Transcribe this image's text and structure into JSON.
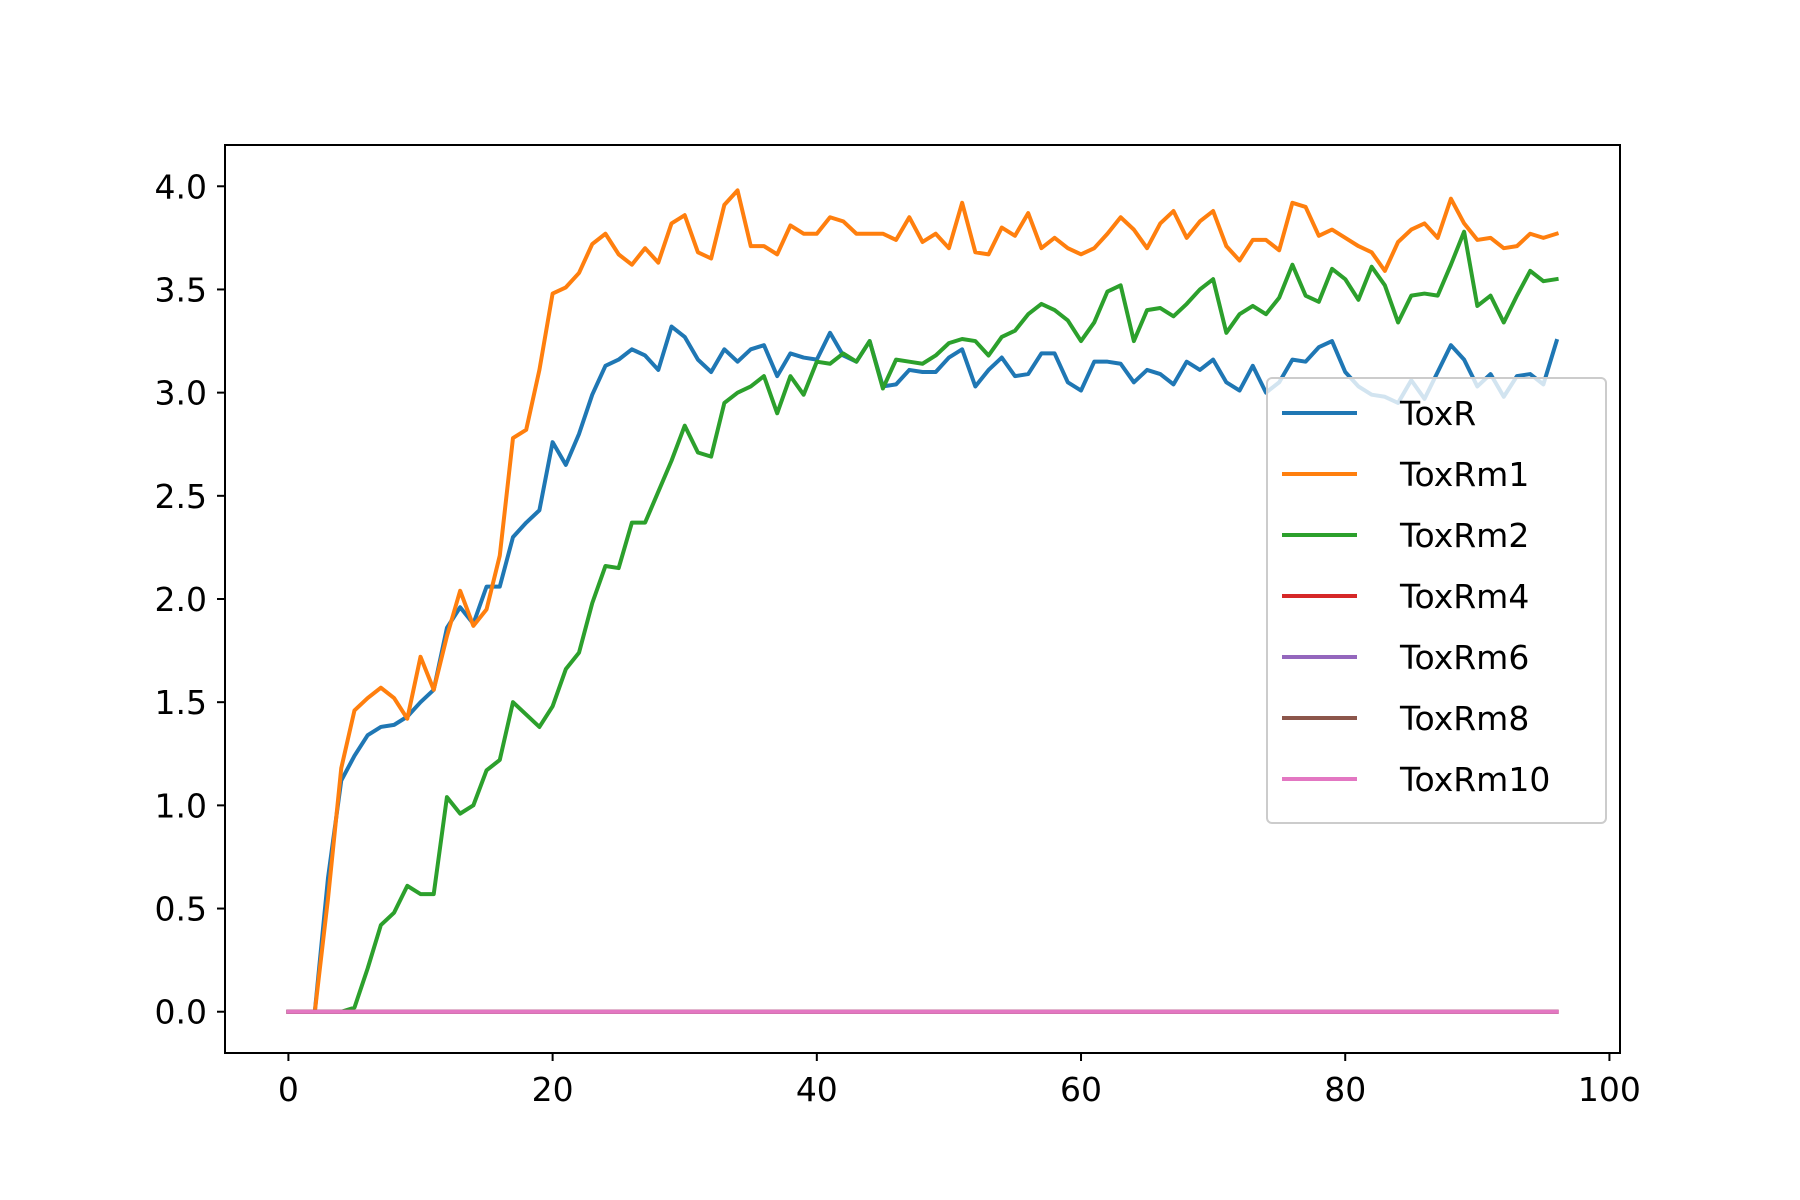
{
  "chart_data": {
    "type": "line",
    "title": "",
    "xlabel": "",
    "ylabel": "",
    "xlim": [
      -4.8,
      100.8
    ],
    "ylim": [
      -0.2,
      4.2
    ],
    "xticks": [
      0,
      20,
      40,
      60,
      80,
      100
    ],
    "yticks": [
      0.0,
      0.5,
      1.0,
      1.5,
      2.0,
      2.5,
      3.0,
      3.5,
      4.0
    ],
    "xtick_labels": [
      "0",
      "20",
      "40",
      "60",
      "80",
      "100"
    ],
    "ytick_labels": [
      "0.0",
      "0.5",
      "1.0",
      "1.5",
      "2.0",
      "2.5",
      "3.0",
      "3.5",
      "4.0"
    ],
    "grid": false,
    "legend_position": "center-right",
    "series": [
      {
        "name": "ToxR",
        "color": "#1f77b4",
        "values": [
          0,
          0,
          0,
          0.65,
          1.12,
          1.24,
          1.34,
          1.38,
          1.39,
          1.43,
          1.5,
          1.56,
          1.86,
          1.96,
          1.88,
          2.06,
          2.06,
          2.3,
          2.37,
          2.43,
          2.76,
          2.65,
          2.8,
          2.99,
          3.13,
          3.16,
          3.21,
          3.18,
          3.11,
          3.32,
          3.27,
          3.16,
          3.1,
          3.21,
          3.15,
          3.21,
          3.23,
          3.08,
          3.19,
          3.17,
          3.16,
          3.29,
          3.18,
          3.15,
          3.25,
          3.03,
          3.04,
          3.11,
          3.1,
          3.1,
          3.17,
          3.21,
          3.03,
          3.11,
          3.17,
          3.08,
          3.09,
          3.19,
          3.19,
          3.05,
          3.01,
          3.15,
          3.15,
          3.14,
          3.05,
          3.11,
          3.09,
          3.04,
          3.15,
          3.11,
          3.16,
          3.05,
          3.01,
          3.13,
          3.0,
          3.05,
          3.16,
          3.15,
          3.22,
          3.25,
          3.1,
          3.03,
          2.99,
          2.98,
          2.95,
          3.06,
          2.97,
          3.1,
          3.23,
          3.16,
          3.03,
          3.09,
          2.98,
          3.08,
          3.09,
          3.04,
          3.25
        ]
      },
      {
        "name": "ToxRm1",
        "color": "#ff7f0e",
        "values": [
          0,
          0,
          0,
          0.55,
          1.18,
          1.46,
          1.52,
          1.57,
          1.52,
          1.42,
          1.72,
          1.56,
          1.82,
          2.04,
          1.87,
          1.95,
          2.21,
          2.78,
          2.82,
          3.11,
          3.48,
          3.51,
          3.58,
          3.72,
          3.77,
          3.67,
          3.62,
          3.7,
          3.63,
          3.82,
          3.86,
          3.68,
          3.65,
          3.91,
          3.98,
          3.71,
          3.71,
          3.67,
          3.81,
          3.77,
          3.77,
          3.85,
          3.83,
          3.77,
          3.77,
          3.77,
          3.74,
          3.85,
          3.73,
          3.77,
          3.7,
          3.92,
          3.68,
          3.67,
          3.8,
          3.76,
          3.87,
          3.7,
          3.75,
          3.7,
          3.67,
          3.7,
          3.77,
          3.85,
          3.79,
          3.7,
          3.82,
          3.88,
          3.75,
          3.83,
          3.88,
          3.71,
          3.64,
          3.74,
          3.74,
          3.69,
          3.92,
          3.9,
          3.76,
          3.79,
          3.75,
          3.71,
          3.68,
          3.59,
          3.73,
          3.79,
          3.82,
          3.75,
          3.94,
          3.82,
          3.74,
          3.75,
          3.7,
          3.71,
          3.77,
          3.75,
          3.77
        ]
      },
      {
        "name": "ToxRm2",
        "color": "#2ca02c",
        "values": [
          0,
          0,
          0,
          0,
          0,
          0.02,
          0.21,
          0.42,
          0.48,
          0.61,
          0.57,
          0.57,
          1.04,
          0.96,
          1.0,
          1.17,
          1.22,
          1.5,
          1.44,
          1.38,
          1.48,
          1.66,
          1.74,
          1.98,
          2.16,
          2.15,
          2.37,
          2.37,
          2.52,
          2.67,
          2.84,
          2.71,
          2.69,
          2.95,
          3.0,
          3.03,
          3.08,
          2.9,
          3.08,
          2.99,
          3.15,
          3.14,
          3.19,
          3.15,
          3.25,
          3.02,
          3.16,
          3.15,
          3.14,
          3.18,
          3.24,
          3.26,
          3.25,
          3.18,
          3.27,
          3.3,
          3.38,
          3.43,
          3.4,
          3.35,
          3.25,
          3.34,
          3.49,
          3.52,
          3.25,
          3.4,
          3.41,
          3.37,
          3.43,
          3.5,
          3.55,
          3.29,
          3.38,
          3.42,
          3.38,
          3.46,
          3.62,
          3.47,
          3.44,
          3.6,
          3.55,
          3.45,
          3.61,
          3.52,
          3.34,
          3.47,
          3.48,
          3.47,
          3.62,
          3.78,
          3.42,
          3.47,
          3.34,
          3.47,
          3.59,
          3.54,
          3.55
        ]
      },
      {
        "name": "ToxRm4",
        "color": "#d62728",
        "values": [
          0,
          0,
          0,
          0,
          0,
          0,
          0,
          0,
          0,
          0,
          0,
          0,
          0,
          0,
          0,
          0,
          0,
          0,
          0,
          0,
          0,
          0,
          0,
          0,
          0,
          0,
          0,
          0,
          0,
          0,
          0,
          0,
          0,
          0,
          0,
          0,
          0,
          0,
          0,
          0,
          0,
          0,
          0,
          0,
          0,
          0,
          0,
          0,
          0,
          0,
          0,
          0,
          0,
          0,
          0,
          0,
          0,
          0,
          0,
          0,
          0,
          0,
          0,
          0,
          0,
          0,
          0,
          0,
          0,
          0,
          0,
          0,
          0,
          0,
          0,
          0,
          0,
          0,
          0,
          0,
          0,
          0,
          0,
          0,
          0,
          0,
          0,
          0,
          0,
          0,
          0,
          0,
          0,
          0,
          0,
          0,
          0
        ]
      },
      {
        "name": "ToxRm6",
        "color": "#9467bd",
        "values": [
          0,
          0,
          0,
          0,
          0,
          0,
          0,
          0,
          0,
          0,
          0,
          0,
          0,
          0,
          0,
          0,
          0,
          0,
          0,
          0,
          0,
          0,
          0,
          0,
          0,
          0,
          0,
          0,
          0,
          0,
          0,
          0,
          0,
          0,
          0,
          0,
          0,
          0,
          0,
          0,
          0,
          0,
          0,
          0,
          0,
          0,
          0,
          0,
          0,
          0,
          0,
          0,
          0,
          0,
          0,
          0,
          0,
          0,
          0,
          0,
          0,
          0,
          0,
          0,
          0,
          0,
          0,
          0,
          0,
          0,
          0,
          0,
          0,
          0,
          0,
          0,
          0,
          0,
          0,
          0,
          0,
          0,
          0,
          0,
          0,
          0,
          0,
          0,
          0,
          0,
          0,
          0,
          0,
          0,
          0,
          0,
          0
        ]
      },
      {
        "name": "ToxRm8",
        "color": "#8c564b",
        "values": [
          0,
          0,
          0,
          0,
          0,
          0,
          0,
          0,
          0,
          0,
          0,
          0,
          0,
          0,
          0,
          0,
          0,
          0,
          0,
          0,
          0,
          0,
          0,
          0,
          0,
          0,
          0,
          0,
          0,
          0,
          0,
          0,
          0,
          0,
          0,
          0,
          0,
          0,
          0,
          0,
          0,
          0,
          0,
          0,
          0,
          0,
          0,
          0,
          0,
          0,
          0,
          0,
          0,
          0,
          0,
          0,
          0,
          0,
          0,
          0,
          0,
          0,
          0,
          0,
          0,
          0,
          0,
          0,
          0,
          0,
          0,
          0,
          0,
          0,
          0,
          0,
          0,
          0,
          0,
          0,
          0,
          0,
          0,
          0,
          0,
          0,
          0,
          0,
          0,
          0,
          0,
          0,
          0,
          0,
          0,
          0,
          0
        ]
      },
      {
        "name": "ToxRm10",
        "color": "#e377c2",
        "values": [
          0,
          0,
          0,
          0,
          0,
          0,
          0,
          0,
          0,
          0,
          0,
          0,
          0,
          0,
          0,
          0,
          0,
          0,
          0,
          0,
          0,
          0,
          0,
          0,
          0,
          0,
          0,
          0,
          0,
          0,
          0,
          0,
          0,
          0,
          0,
          0,
          0,
          0,
          0,
          0,
          0,
          0,
          0,
          0,
          0,
          0,
          0,
          0,
          0,
          0,
          0,
          0,
          0,
          0,
          0,
          0,
          0,
          0,
          0,
          0,
          0,
          0,
          0,
          0,
          0,
          0,
          0,
          0,
          0,
          0,
          0,
          0,
          0,
          0,
          0,
          0,
          0,
          0,
          0,
          0,
          0,
          0,
          0,
          0,
          0,
          0,
          0,
          0,
          0,
          0,
          0,
          0,
          0,
          0,
          0,
          0,
          0
        ]
      }
    ]
  }
}
